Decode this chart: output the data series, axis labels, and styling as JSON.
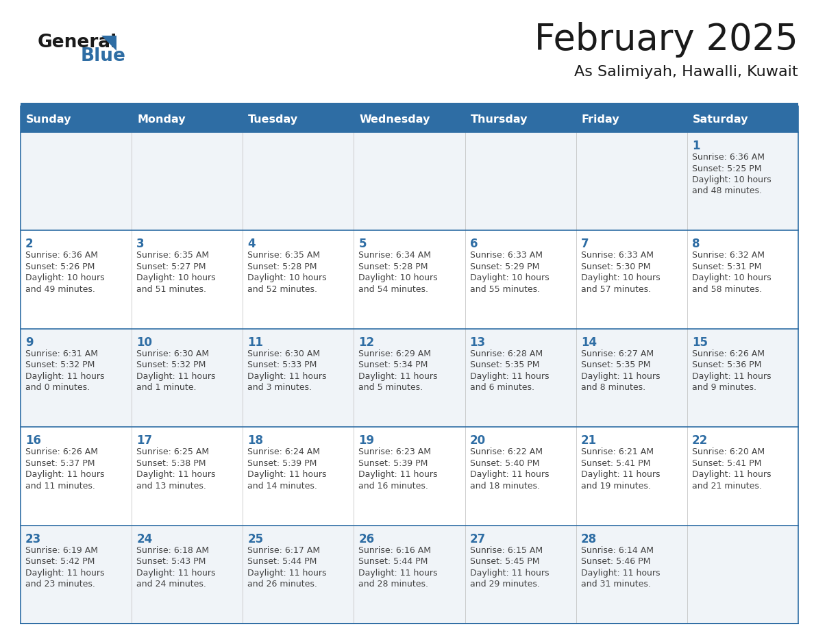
{
  "title": "February 2025",
  "subtitle": "As Salimiyah, Hawalli, Kuwait",
  "header_bg": "#2E6DA4",
  "header_text_color": "#FFFFFF",
  "cell_bg_white": "#FFFFFF",
  "cell_bg_gray": "#F0F4F8",
  "date_num_color": "#2E6DA4",
  "info_text_color": "#444444",
  "border_color": "#2E6DA4",
  "days_of_week": [
    "Sunday",
    "Monday",
    "Tuesday",
    "Wednesday",
    "Thursday",
    "Friday",
    "Saturday"
  ],
  "weeks": [
    [
      null,
      null,
      null,
      null,
      null,
      null,
      1
    ],
    [
      2,
      3,
      4,
      5,
      6,
      7,
      8
    ],
    [
      9,
      10,
      11,
      12,
      13,
      14,
      15
    ],
    [
      16,
      17,
      18,
      19,
      20,
      21,
      22
    ],
    [
      23,
      24,
      25,
      26,
      27,
      28,
      null
    ]
  ],
  "day_data": {
    "1": {
      "sunrise": "6:36 AM",
      "sunset": "5:25 PM",
      "daylight_hours": 10,
      "daylight_minutes": 48
    },
    "2": {
      "sunrise": "6:36 AM",
      "sunset": "5:26 PM",
      "daylight_hours": 10,
      "daylight_minutes": 49
    },
    "3": {
      "sunrise": "6:35 AM",
      "sunset": "5:27 PM",
      "daylight_hours": 10,
      "daylight_minutes": 51
    },
    "4": {
      "sunrise": "6:35 AM",
      "sunset": "5:28 PM",
      "daylight_hours": 10,
      "daylight_minutes": 52
    },
    "5": {
      "sunrise": "6:34 AM",
      "sunset": "5:28 PM",
      "daylight_hours": 10,
      "daylight_minutes": 54
    },
    "6": {
      "sunrise": "6:33 AM",
      "sunset": "5:29 PM",
      "daylight_hours": 10,
      "daylight_minutes": 55
    },
    "7": {
      "sunrise": "6:33 AM",
      "sunset": "5:30 PM",
      "daylight_hours": 10,
      "daylight_minutes": 57
    },
    "8": {
      "sunrise": "6:32 AM",
      "sunset": "5:31 PM",
      "daylight_hours": 10,
      "daylight_minutes": 58
    },
    "9": {
      "sunrise": "6:31 AM",
      "sunset": "5:32 PM",
      "daylight_hours": 11,
      "daylight_minutes": 0
    },
    "10": {
      "sunrise": "6:30 AM",
      "sunset": "5:32 PM",
      "daylight_hours": 11,
      "daylight_minutes": 1
    },
    "11": {
      "sunrise": "6:30 AM",
      "sunset": "5:33 PM",
      "daylight_hours": 11,
      "daylight_minutes": 3
    },
    "12": {
      "sunrise": "6:29 AM",
      "sunset": "5:34 PM",
      "daylight_hours": 11,
      "daylight_minutes": 5
    },
    "13": {
      "sunrise": "6:28 AM",
      "sunset": "5:35 PM",
      "daylight_hours": 11,
      "daylight_minutes": 6
    },
    "14": {
      "sunrise": "6:27 AM",
      "sunset": "5:35 PM",
      "daylight_hours": 11,
      "daylight_minutes": 8
    },
    "15": {
      "sunrise": "6:26 AM",
      "sunset": "5:36 PM",
      "daylight_hours": 11,
      "daylight_minutes": 9
    },
    "16": {
      "sunrise": "6:26 AM",
      "sunset": "5:37 PM",
      "daylight_hours": 11,
      "daylight_minutes": 11
    },
    "17": {
      "sunrise": "6:25 AM",
      "sunset": "5:38 PM",
      "daylight_hours": 11,
      "daylight_minutes": 13
    },
    "18": {
      "sunrise": "6:24 AM",
      "sunset": "5:39 PM",
      "daylight_hours": 11,
      "daylight_minutes": 14
    },
    "19": {
      "sunrise": "6:23 AM",
      "sunset": "5:39 PM",
      "daylight_hours": 11,
      "daylight_minutes": 16
    },
    "20": {
      "sunrise": "6:22 AM",
      "sunset": "5:40 PM",
      "daylight_hours": 11,
      "daylight_minutes": 18
    },
    "21": {
      "sunrise": "6:21 AM",
      "sunset": "5:41 PM",
      "daylight_hours": 11,
      "daylight_minutes": 19
    },
    "22": {
      "sunrise": "6:20 AM",
      "sunset": "5:41 PM",
      "daylight_hours": 11,
      "daylight_minutes": 21
    },
    "23": {
      "sunrise": "6:19 AM",
      "sunset": "5:42 PM",
      "daylight_hours": 11,
      "daylight_minutes": 23
    },
    "24": {
      "sunrise": "6:18 AM",
      "sunset": "5:43 PM",
      "daylight_hours": 11,
      "daylight_minutes": 24
    },
    "25": {
      "sunrise": "6:17 AM",
      "sunset": "5:44 PM",
      "daylight_hours": 11,
      "daylight_minutes": 26
    },
    "26": {
      "sunrise": "6:16 AM",
      "sunset": "5:44 PM",
      "daylight_hours": 11,
      "daylight_minutes": 28
    },
    "27": {
      "sunrise": "6:15 AM",
      "sunset": "5:45 PM",
      "daylight_hours": 11,
      "daylight_minutes": 29
    },
    "28": {
      "sunrise": "6:14 AM",
      "sunset": "5:46 PM",
      "daylight_hours": 11,
      "daylight_minutes": 31
    }
  }
}
